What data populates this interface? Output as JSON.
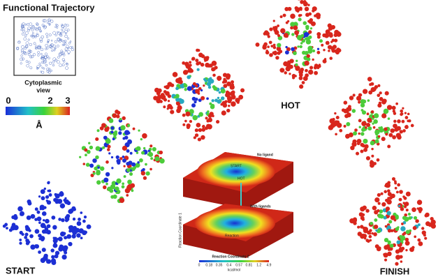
{
  "header": {
    "title": "Functional Trajectory"
  },
  "inset": {
    "caption_line1": "Cytoplasmic",
    "caption_line2": "view"
  },
  "colorbar": {
    "ticks": [
      "0",
      "2",
      "3"
    ],
    "unit": "Å"
  },
  "labels": {
    "start": "START",
    "hot": "HOT",
    "finish": "FINISH"
  },
  "energy_panel": {
    "top_label": "No ligand",
    "bottom_label": "With ligands",
    "top_start": "START",
    "top_hot": "HOT",
    "bottom_marker": "Reaction",
    "y_axis": "Reaction Coordinate 1",
    "x_axis": "Reaction Coordinate 2",
    "scale_ticks": [
      "0",
      "0.18",
      "0.35",
      "0.4",
      "0.57",
      "0.81",
      "1.2",
      "4.9"
    ],
    "unit": "kcal/mol"
  }
}
